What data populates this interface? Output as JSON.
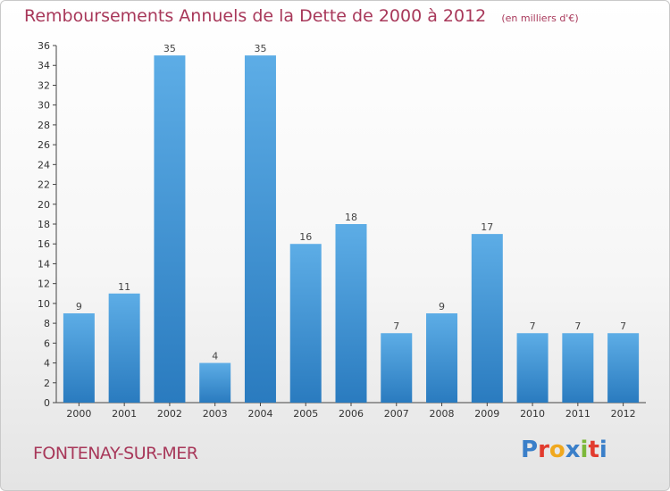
{
  "header": {
    "title": "Remboursements Annuels de la Dette de 2000 à 2012",
    "unit": "(en milliers d'€)"
  },
  "footer": {
    "city": "FONTENAY-SUR-MER",
    "logo": "Proxiti",
    "logo_colors": [
      "#3a7fc9",
      "#e23b2e",
      "#f0a81e",
      "#3a7fc9",
      "#7cb83a",
      "#e23b2e",
      "#3a7fc9"
    ]
  },
  "chart_data": {
    "type": "bar",
    "title": "Remboursements Annuels de la Dette de 2000 à 2012",
    "xlabel": "",
    "ylabel": "",
    "categories": [
      "2000",
      "2001",
      "2002",
      "2003",
      "2004",
      "2005",
      "2006",
      "2007",
      "2008",
      "2009",
      "2010",
      "2011",
      "2012"
    ],
    "values": [
      9,
      11,
      35,
      4,
      35,
      16,
      18,
      7,
      9,
      17,
      7,
      7,
      7
    ],
    "ylim": [
      0,
      36
    ],
    "ytick_step": 2,
    "grid": false,
    "bar_color_light": "#5dade6",
    "bar_color_dark": "#2a7bbf"
  }
}
